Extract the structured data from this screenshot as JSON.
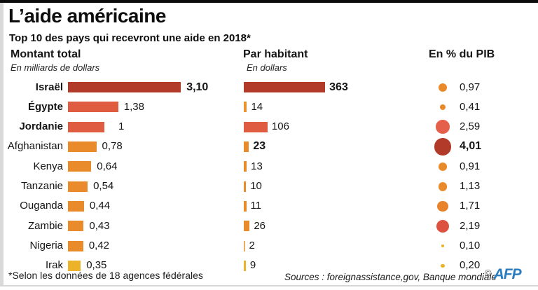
{
  "header": {
    "title": "L’aide américaine",
    "subtitle": "Top 10 des pays qui recevront une aide en 2018*"
  },
  "columns": [
    {
      "label": "Montant total",
      "sublabel": "En milliards de dollars"
    },
    {
      "label": "Par habitant",
      "sublabel": "En dollars"
    },
    {
      "label": "En % du PIB",
      "sublabel": ""
    }
  ],
  "rows": [
    {
      "country": "Israël",
      "country_bold": true,
      "montant": "3,10",
      "montant_value": 3.1,
      "montant_bold": true,
      "montant_color": "#b23a28",
      "parhab": "363",
      "parhab_value": 363,
      "parhab_bold": true,
      "parhab_color": "#b23a28",
      "pib": "0,97",
      "pib_value": 0.97,
      "pib_bold": false,
      "pib_color": "#e98a2b"
    },
    {
      "country": "Égypte",
      "country_bold": true,
      "montant": "1,38",
      "montant_value": 1.38,
      "montant_bold": false,
      "montant_color": "#e05c40",
      "parhab": "14",
      "parhab_value": 14,
      "parhab_bold": false,
      "parhab_color": "#e99430",
      "pib": "0,41",
      "pib_value": 0.41,
      "pib_bold": false,
      "pib_color": "#e98a2b"
    },
    {
      "country": "Jordanie",
      "country_bold": true,
      "montant": "1",
      "montant_value": 1.0,
      "montant_bold": false,
      "montant_color": "#e05c40",
      "parhab": "106",
      "parhab_value": 106,
      "parhab_bold": false,
      "parhab_color": "#e05c40",
      "pib": "2,59",
      "pib_value": 2.59,
      "pib_bold": false,
      "pib_color": "#e4604a"
    },
    {
      "country": "Afghanistan",
      "country_bold": false,
      "montant": "0,78",
      "montant_value": 0.78,
      "montant_bold": false,
      "montant_color": "#e98a2b",
      "parhab": "23",
      "parhab_value": 23,
      "parhab_bold": true,
      "parhab_color": "#e98a2b",
      "pib": "4,01",
      "pib_value": 4.01,
      "pib_bold": true,
      "pib_color": "#b23a28"
    },
    {
      "country": "Kenya",
      "country_bold": false,
      "montant": "0,64",
      "montant_value": 0.64,
      "montant_bold": false,
      "montant_color": "#e98a2b",
      "parhab": "13",
      "parhab_value": 13,
      "parhab_bold": false,
      "parhab_color": "#e98a2b",
      "pib": "0,91",
      "pib_value": 0.91,
      "pib_bold": false,
      "pib_color": "#e98a2b"
    },
    {
      "country": "Tanzanie",
      "country_bold": false,
      "montant": "0,54",
      "montant_value": 0.54,
      "montant_bold": false,
      "montant_color": "#e98a2b",
      "parhab": "10",
      "parhab_value": 10,
      "parhab_bold": false,
      "parhab_color": "#e98a2b",
      "pib": "1,13",
      "pib_value": 1.13,
      "pib_bold": false,
      "pib_color": "#e98a2b"
    },
    {
      "country": "Ouganda",
      "country_bold": false,
      "montant": "0,44",
      "montant_value": 0.44,
      "montant_bold": false,
      "montant_color": "#e98a2b",
      "parhab": "11",
      "parhab_value": 11,
      "parhab_bold": false,
      "parhab_color": "#e98a2b",
      "pib": "1,71",
      "pib_value": 1.71,
      "pib_bold": false,
      "pib_color": "#e8832a"
    },
    {
      "country": "Zambie",
      "country_bold": false,
      "montant": "0,43",
      "montant_value": 0.43,
      "montant_bold": false,
      "montant_color": "#e98a2b",
      "parhab": "26",
      "parhab_value": 26,
      "parhab_bold": false,
      "parhab_color": "#e98a2b",
      "pib": "2,19",
      "pib_value": 2.19,
      "pib_bold": false,
      "pib_color": "#dc5140"
    },
    {
      "country": "Nigeria",
      "country_bold": false,
      "montant": "0,42",
      "montant_value": 0.42,
      "montant_bold": false,
      "montant_color": "#e98a2b",
      "parhab": "2",
      "parhab_value": 2,
      "parhab_bold": false,
      "parhab_color": "#eda95f",
      "pib": "0,10",
      "pib_value": 0.1,
      "pib_bold": false,
      "pib_color": "#ecb32a"
    },
    {
      "country": "Irak",
      "country_bold": false,
      "montant": "0,35",
      "montant_value": 0.35,
      "montant_bold": false,
      "montant_color": "#ecb32a",
      "parhab": "9",
      "parhab_value": 9,
      "parhab_bold": false,
      "parhab_color": "#ecb32a",
      "pib": "0,20",
      "pib_value": 0.2,
      "pib_bold": false,
      "pib_color": "#ecb32a"
    }
  ],
  "footer": {
    "note": "*Selon les données de 18 agences fédérales",
    "sources": "Sources : foreignassistance,gov, Banque mondiale",
    "copyright": "©",
    "logo": "AFP"
  },
  "palette": {
    "dark_red": "#b23a28",
    "vermilion": "#e05c40",
    "orange": "#e98a2b",
    "yellow": "#ecb32a",
    "afp_blue": "#2a7cc0"
  },
  "chart_data": {
    "type": "bar",
    "title": "L’aide américaine",
    "subtitle": "Top 10 des pays qui recevront une aide en 2018*",
    "categories": [
      "Israël",
      "Égypte",
      "Jordanie",
      "Afghanistan",
      "Kenya",
      "Tanzanie",
      "Ouganda",
      "Zambie",
      "Nigeria",
      "Irak"
    ],
    "series": [
      {
        "name": "Montant total",
        "unit": "En milliards de dollars",
        "render": "horizontal-bar",
        "values": [
          3.1,
          1.38,
          1,
          0.78,
          0.64,
          0.54,
          0.44,
          0.43,
          0.42,
          0.35
        ]
      },
      {
        "name": "Par habitant",
        "unit": "En dollars",
        "render": "horizontal-bar",
        "values": [
          363,
          14,
          106,
          23,
          13,
          10,
          11,
          26,
          2,
          9
        ]
      },
      {
        "name": "En % du PIB",
        "unit": "%",
        "render": "proportional-circle",
        "values": [
          0.97,
          0.41,
          2.59,
          4.01,
          0.91,
          1.13,
          1.71,
          2.19,
          0.1,
          0.2
        ]
      }
    ],
    "layout_hints": {
      "orientation": "horizontal",
      "grid": false,
      "legend": "none",
      "color_encodes_magnitude": true
    }
  }
}
